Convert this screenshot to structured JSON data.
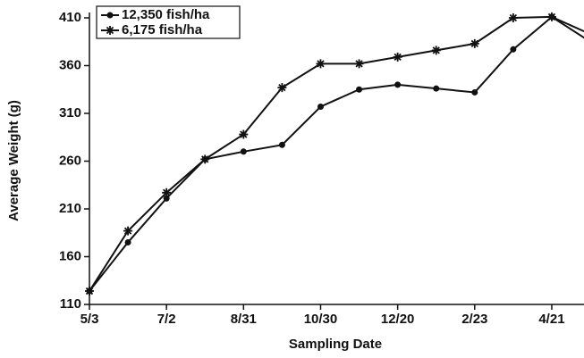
{
  "chart_data": {
    "type": "line",
    "x_label": "Sampling Date",
    "y_label": "Average Weight (g)",
    "categories": [
      "5/3",
      null,
      "7/2",
      null,
      "8/31",
      null,
      "10/30",
      null,
      "12/20",
      null,
      "2/23",
      null,
      "4/21",
      null
    ],
    "series": [
      {
        "name": "12,350 fish/ha",
        "color": "#111111",
        "marker": "circle",
        "values": [
          124,
          175,
          221,
          262,
          270,
          277,
          317,
          335,
          340,
          336,
          332,
          377,
          411,
          385
        ]
      },
      {
        "name": "6,175 fish/ha",
        "color": "#111111",
        "marker": "star",
        "values": [
          124,
          187,
          227,
          262,
          288,
          337,
          362,
          362,
          369,
          376,
          383,
          410,
          411,
          393
        ]
      }
    ],
    "ylim": [
      110,
      410
    ],
    "yticks": [
      110,
      160,
      210,
      260,
      310,
      360,
      410
    ],
    "legend": "upper left",
    "grid": false
  }
}
